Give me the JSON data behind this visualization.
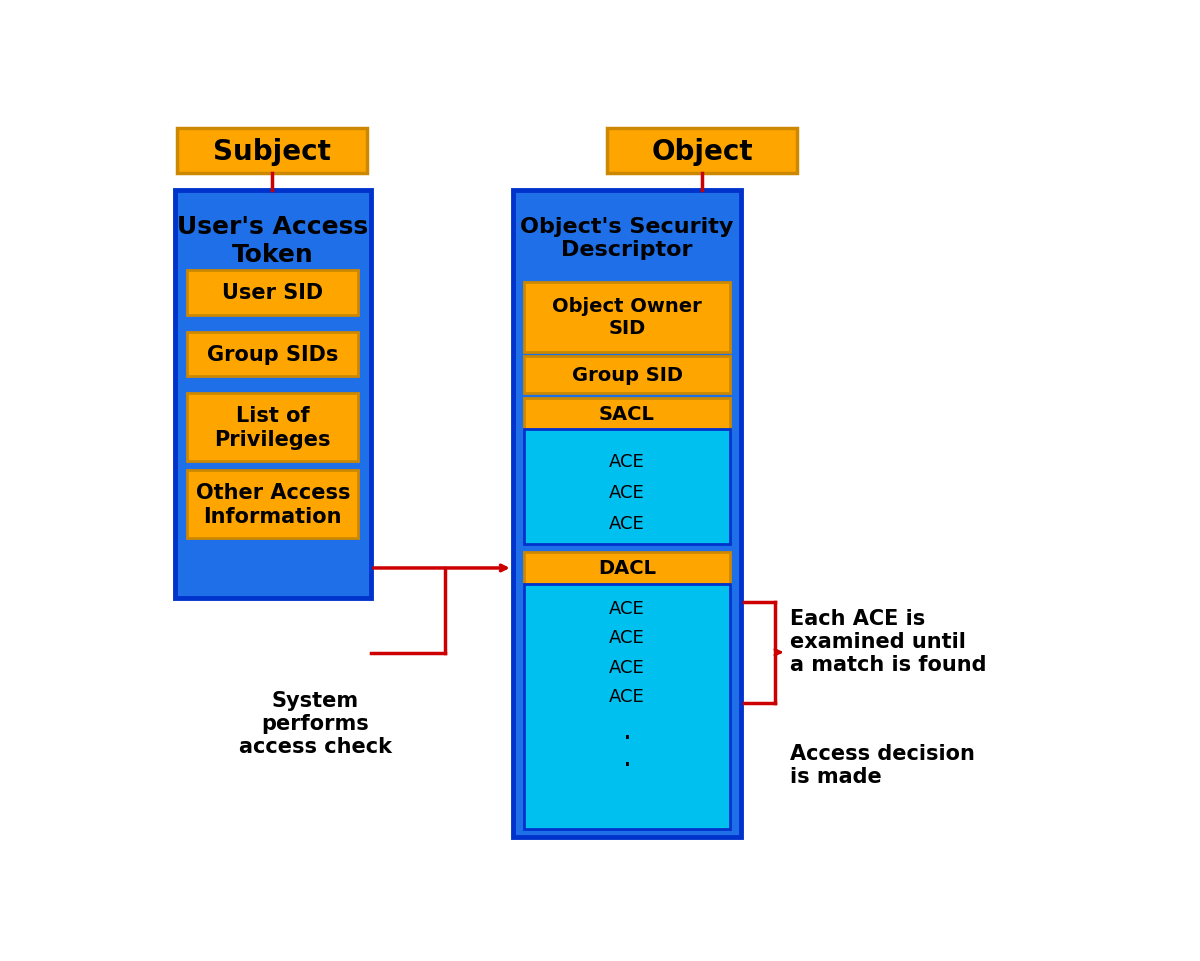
{
  "bg_color": "#ffffff",
  "blue_dark": "#1e6fe8",
  "blue_light": "#00c0f0",
  "orange": "#FFA500",
  "orange_edge": "#cc8800",
  "blue_edge": "#0033cc",
  "red": "#cc0000",
  "black": "#000000",
  "subject_label": "Subject",
  "object_label": "Object",
  "left_box_title": "User's Access\nToken",
  "left_items": [
    "User SID",
    "Group SIDs",
    "List of\nPrivileges",
    "Other Access\nInformation"
  ],
  "right_box_title": "Object's Security\nDescriptor",
  "right_top_items": [
    "Object Owner\nSID",
    "Group SID"
  ],
  "sacl_label": "SACL",
  "dacl_label": "DACL",
  "system_text": "System\nperforms\naccess check",
  "each_ace_text": "Each ACE is\nexamined until\na match is found",
  "access_decision_text": "Access decision\nis made"
}
